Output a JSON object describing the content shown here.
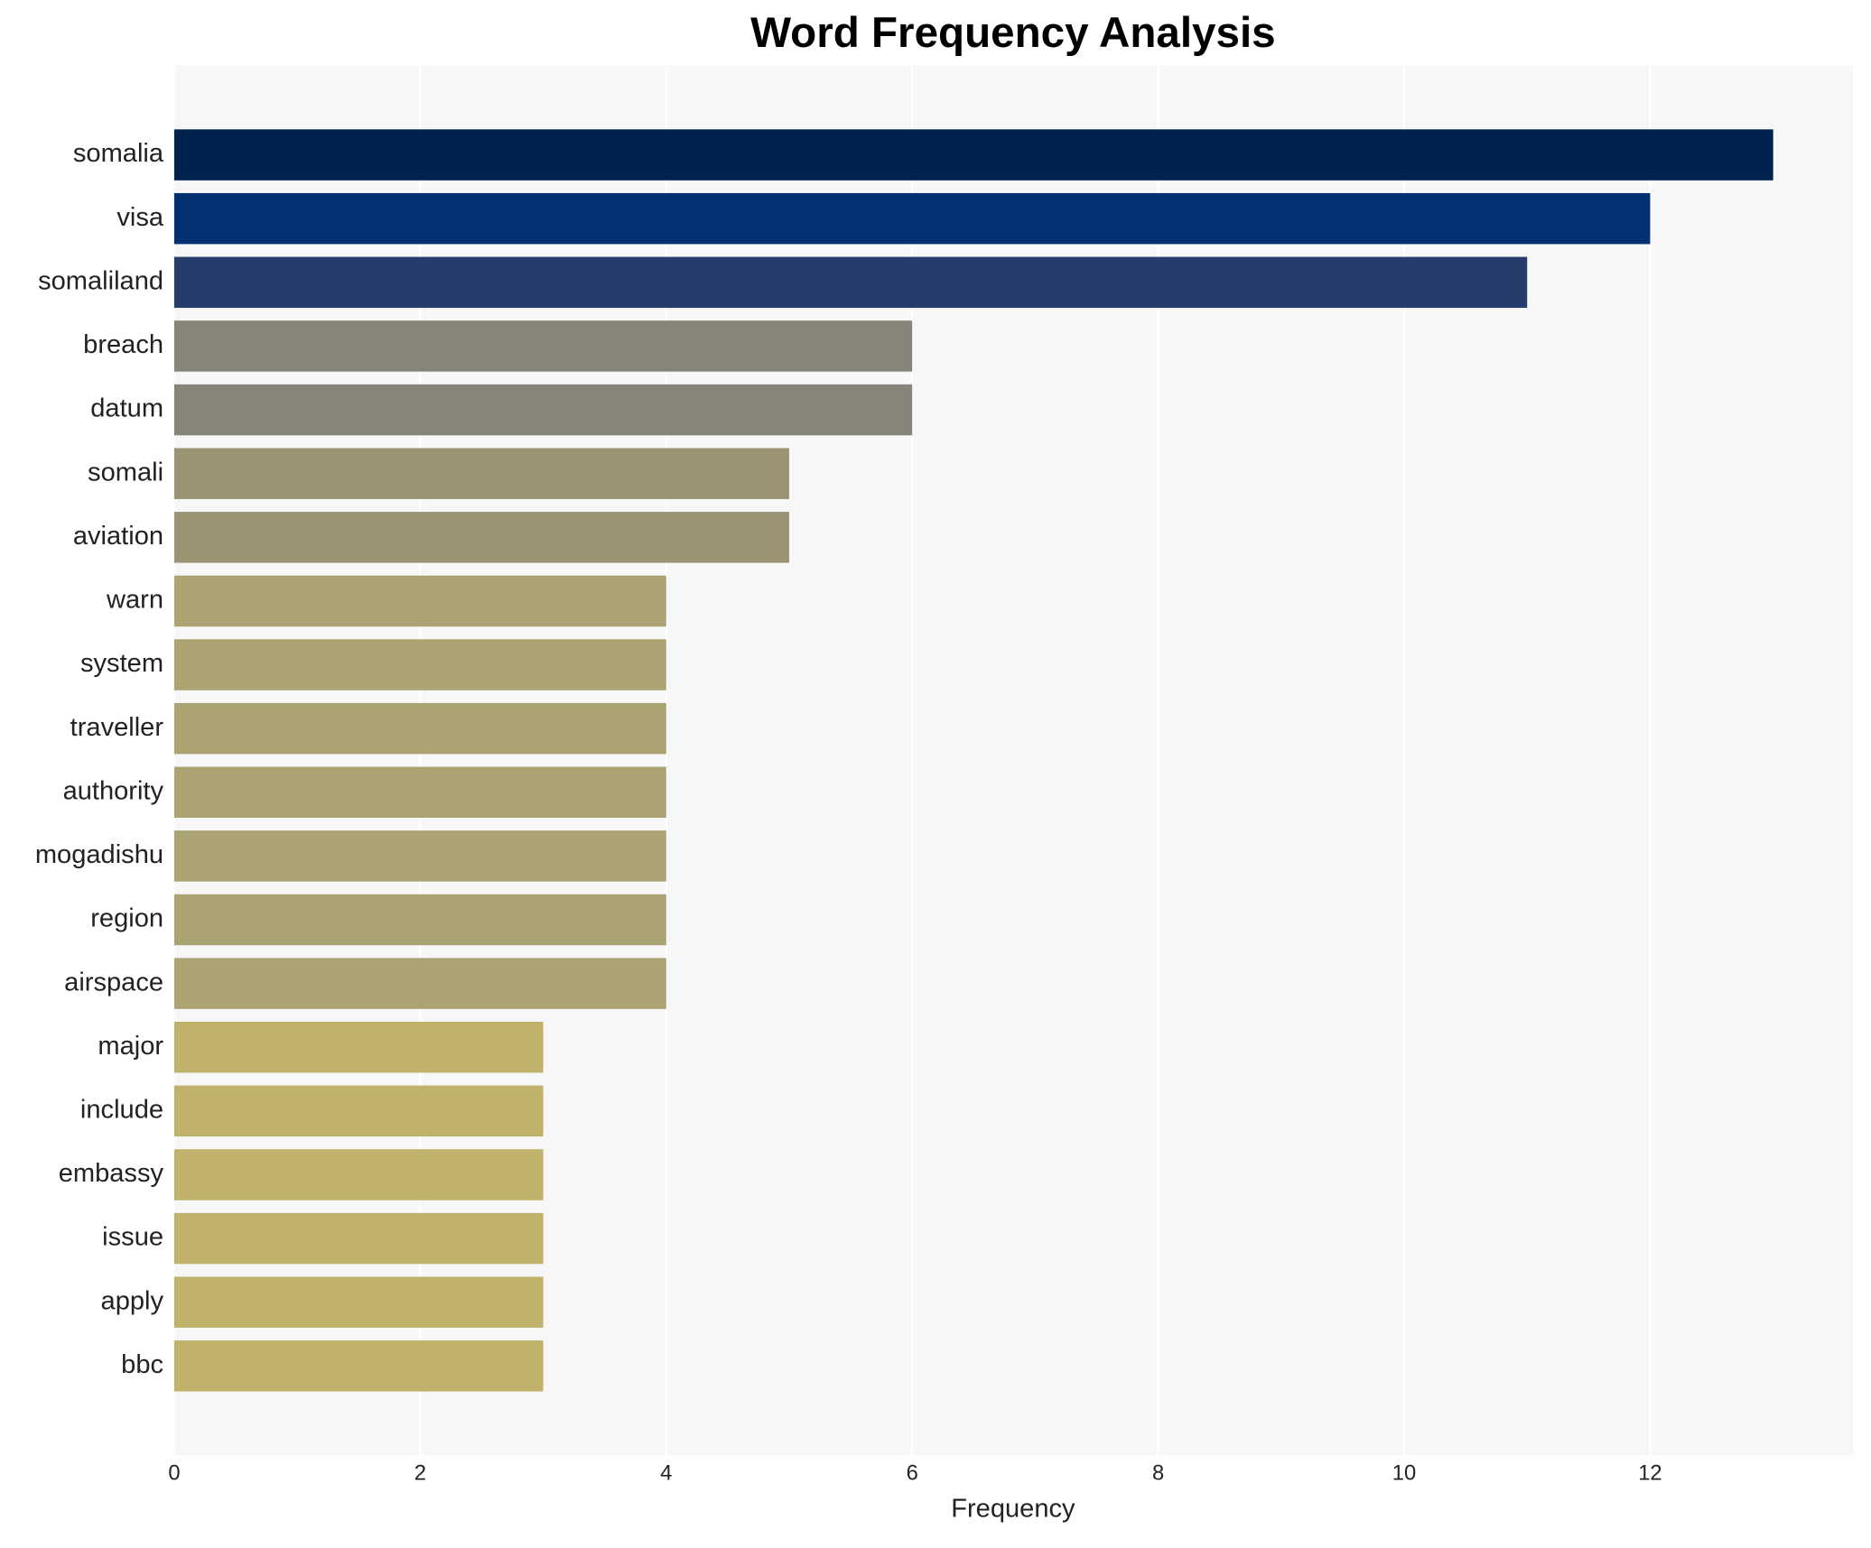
{
  "chart_data": {
    "type": "barh",
    "title": "Word Frequency Analysis",
    "x_label": "Frequency",
    "categories": [
      "somalia",
      "visa",
      "somaliland",
      "breach",
      "datum",
      "somali",
      "aviation",
      "warn",
      "system",
      "traveller",
      "authority",
      "mogadishu",
      "region",
      "airspace",
      "major",
      "include",
      "embassy",
      "issue",
      "apply",
      "bbc"
    ],
    "values": [
      13,
      12,
      11,
      6,
      6,
      5,
      5,
      4,
      4,
      4,
      4,
      4,
      4,
      4,
      3,
      3,
      3,
      3,
      3,
      3
    ],
    "colors": [
      "#00224e",
      "#023070",
      "#253c6c",
      "#868479",
      "#868479",
      "#9a9474",
      "#9a9474",
      "#aca373",
      "#aca373",
      "#aca373",
      "#aca373",
      "#aca373",
      "#aca373",
      "#aca373",
      "#c0b16b",
      "#c0b16b",
      "#c0b16b",
      "#c0b16b",
      "#c0b16b",
      "#c0b16b"
    ],
    "xlim": [
      0,
      13.65
    ],
    "xticks": [
      0,
      2,
      4,
      6,
      8,
      10,
      12
    ],
    "grid": true
  }
}
